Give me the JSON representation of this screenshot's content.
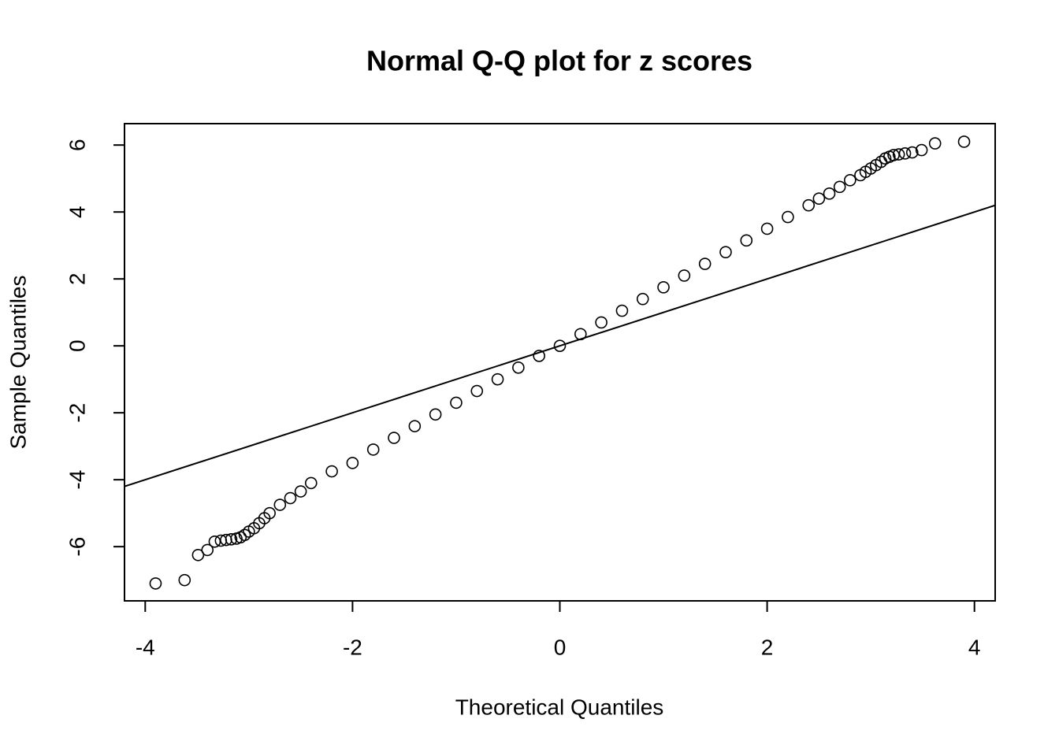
{
  "chart_data": {
    "type": "scatter",
    "title": "Normal Q-Q plot for z scores",
    "x_label": "Theoretical Quantiles",
    "y_label": "Sample Quantiles",
    "x": [
      -3.9,
      -3.62,
      -3.49,
      -3.4,
      -3.33,
      -3.27,
      -3.22,
      -3.17,
      -3.12,
      -3.08,
      -3.04,
      -3.0,
      -2.95,
      -2.9,
      -2.85,
      -2.8,
      -2.7,
      -2.6,
      -2.5,
      -2.4,
      -2.2,
      -2.0,
      -1.8,
      -1.6,
      -1.4,
      -1.2,
      -1.0,
      -0.8,
      -0.6,
      -0.4,
      -0.2,
      0,
      0.2,
      0.4,
      0.6,
      0.8,
      1.0,
      1.2,
      1.4,
      1.6,
      1.8,
      2.0,
      2.2,
      2.4,
      2.5,
      2.6,
      2.7,
      2.8,
      2.9,
      2.95,
      3.0,
      3.05,
      3.1,
      3.14,
      3.18,
      3.22,
      3.27,
      3.33,
      3.4,
      3.49,
      3.62,
      3.9
    ],
    "values": [
      -7.1,
      -7.0,
      -6.25,
      -6.1,
      -5.85,
      -5.82,
      -5.8,
      -5.78,
      -5.76,
      -5.72,
      -5.65,
      -5.55,
      -5.45,
      -5.3,
      -5.15,
      -5.0,
      -4.75,
      -4.55,
      -4.35,
      -4.1,
      -3.75,
      -3.5,
      -3.1,
      -2.75,
      -2.4,
      -2.05,
      -1.7,
      -1.35,
      -1.0,
      -0.65,
      -0.3,
      0,
      0.35,
      0.7,
      1.05,
      1.4,
      1.75,
      2.1,
      2.45,
      2.8,
      3.15,
      3.5,
      3.85,
      4.2,
      4.4,
      4.55,
      4.75,
      4.95,
      5.1,
      5.2,
      5.3,
      5.4,
      5.5,
      5.6,
      5.65,
      5.7,
      5.72,
      5.75,
      5.78,
      5.85,
      6.05,
      6.1
    ],
    "color": "#000000",
    "reference_line": {
      "slope": 1,
      "intercept": 0
    },
    "xlim": [
      -4.2,
      4.2
    ],
    "xticks": [
      -4,
      -2,
      0,
      2,
      4
    ],
    "ylim": [
      -7.62,
      6.64
    ],
    "yticks": [
      -6,
      -4,
      -2,
      0,
      2,
      4,
      6
    ]
  }
}
